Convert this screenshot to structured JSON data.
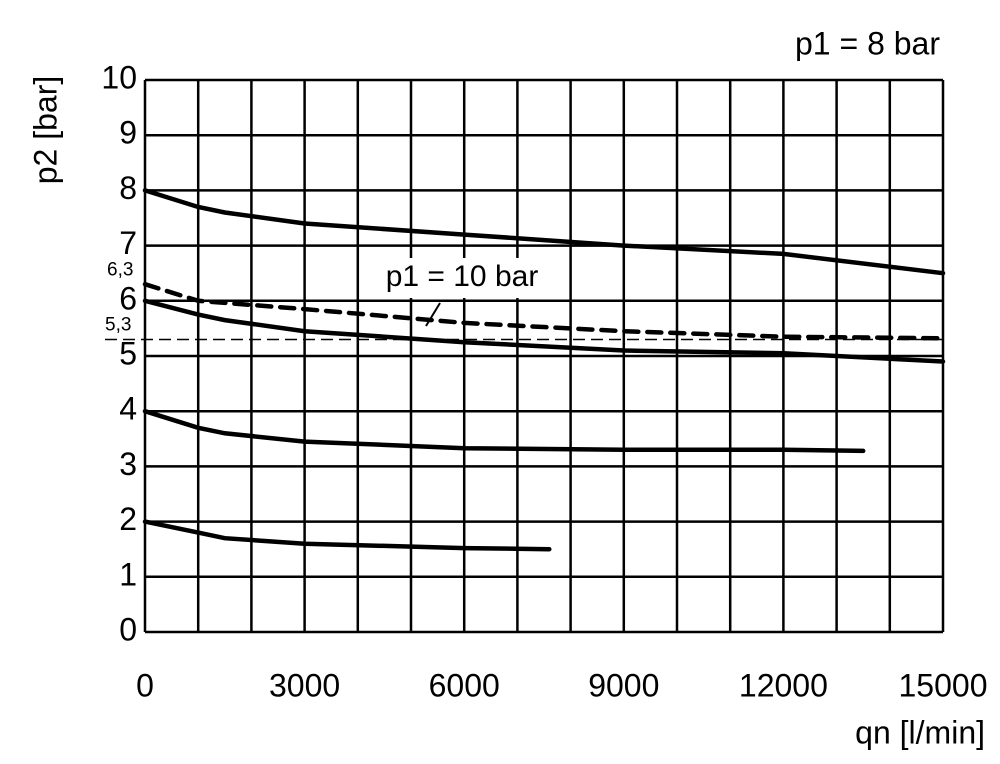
{
  "chart_data": {
    "type": "line",
    "annotation": "p1 = 8 bar",
    "ylabel": "p2 [bar]",
    "xlabel": "qn [l/min]",
    "xlim": [
      0,
      15000
    ],
    "xticks": [
      0,
      3000,
      6000,
      9000,
      12000,
      15000
    ],
    "xgrid": [
      1000,
      2000,
      4000,
      5000,
      7000,
      8000,
      10000,
      11000,
      13000,
      14000
    ],
    "ylim": [
      0,
      10
    ],
    "yticks": [
      0,
      1,
      2,
      3,
      4,
      5,
      6,
      7,
      8,
      9,
      10
    ],
    "grid": true,
    "reference_line": {
      "value": 5.3,
      "label": "5,3",
      "style": "dashed",
      "color": "#000000"
    },
    "series": [
      {
        "color": "#000000",
        "style": "solid",
        "x": [
          0,
          1000,
          1500,
          3000,
          6000,
          9000,
          12000,
          15000
        ],
        "values": [
          8,
          7.7,
          7.6,
          7.4,
          7.2,
          7.0,
          6.85,
          6.5
        ]
      },
      {
        "name": "p1 = 10 bar",
        "start_label": {
          "value": 6.3,
          "label": "6,3"
        },
        "color": "#000000",
        "style": "dashed",
        "x": [
          0,
          1000,
          3000,
          6000,
          9000,
          12000,
          15000
        ],
        "values": [
          6.3,
          6.0,
          5.85,
          5.6,
          5.45,
          5.35,
          5.32
        ]
      },
      {
        "color": "#000000",
        "style": "solid",
        "x": [
          0,
          1000,
          1500,
          3000,
          6000,
          9000,
          12000,
          15000
        ],
        "values": [
          6.0,
          5.75,
          5.65,
          5.45,
          5.25,
          5.1,
          5.05,
          4.9
        ]
      },
      {
        "color": "#000000",
        "style": "solid",
        "x": [
          0,
          1000,
          1500,
          3000,
          6000,
          9000,
          12000,
          13500
        ],
        "values": [
          4,
          3.7,
          3.6,
          3.45,
          3.33,
          3.3,
          3.3,
          3.28
        ]
      },
      {
        "color": "#000000",
        "style": "solid",
        "x": [
          0,
          1000,
          1500,
          3000,
          6000,
          7600
        ],
        "values": [
          2,
          1.8,
          1.7,
          1.6,
          1.52,
          1.5
        ]
      }
    ]
  }
}
